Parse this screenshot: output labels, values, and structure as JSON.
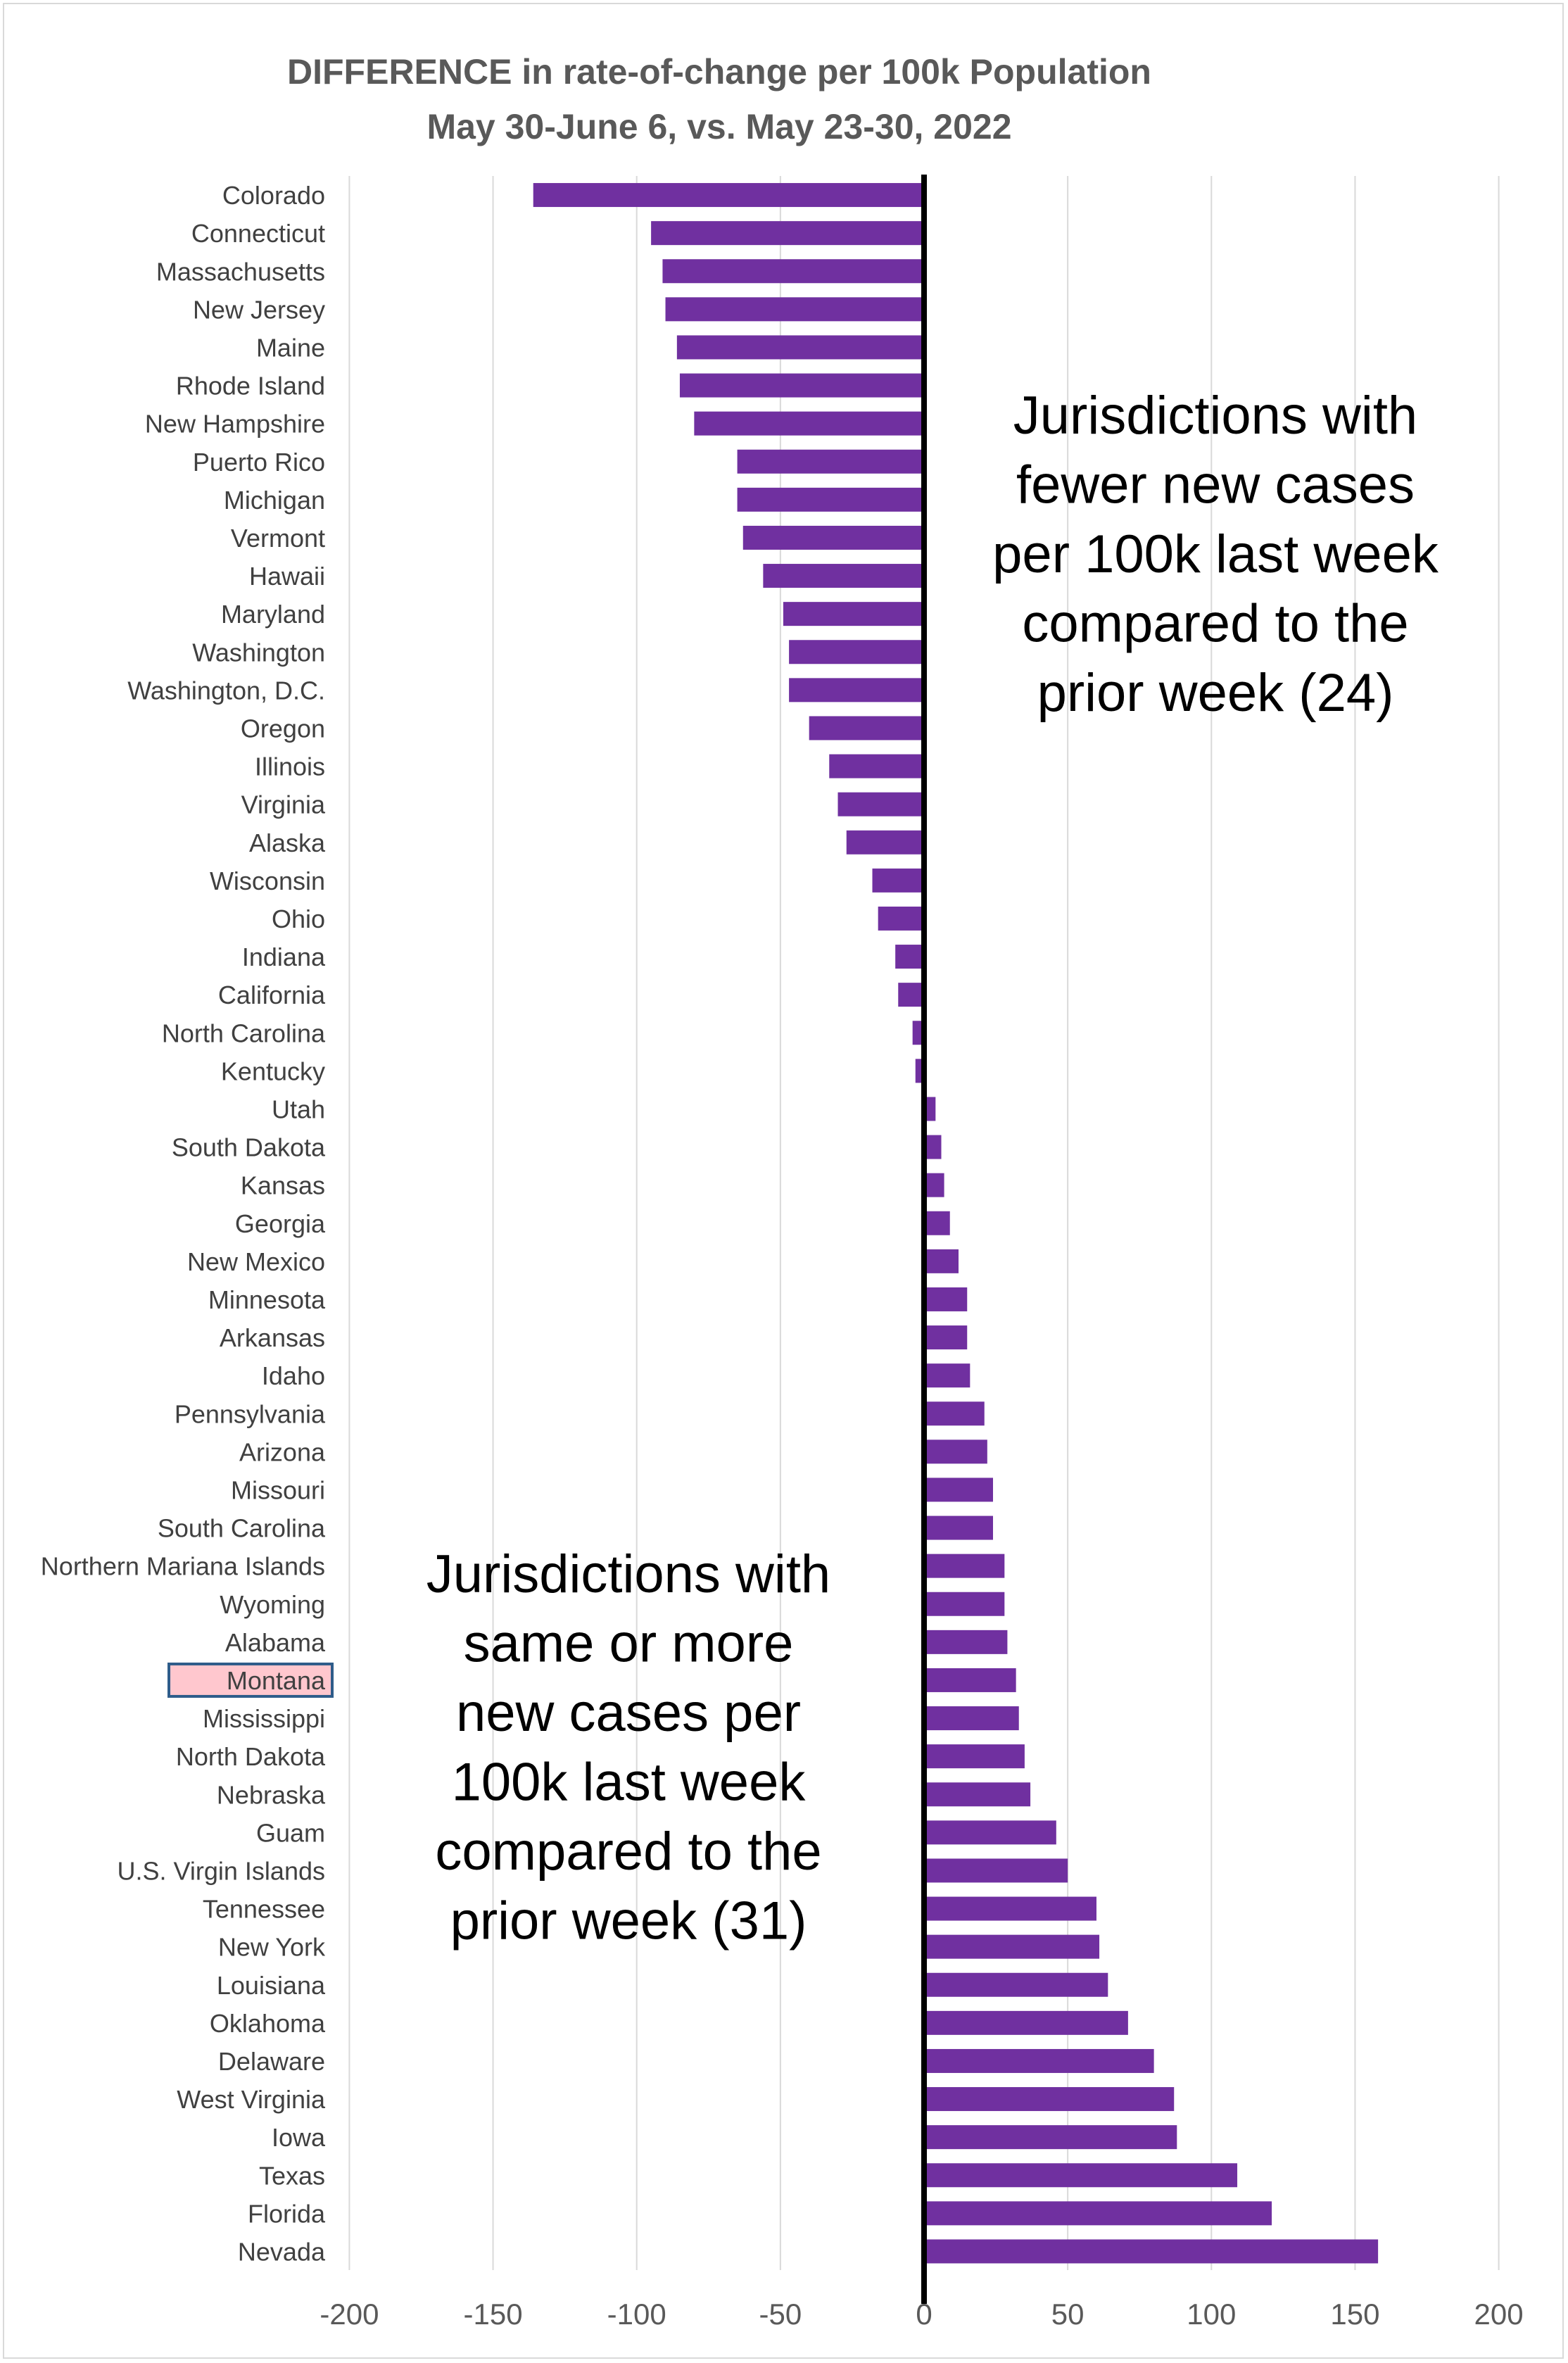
{
  "chart_data": {
    "type": "bar",
    "orientation": "horizontal",
    "title": "DIFFERENCE in rate-of-change per 100k Population",
    "subtitle": "May 30-June 6, vs. May 23-30, 2022",
    "xlabel": "",
    "ylabel": "",
    "xlim": [
      -200,
      200
    ],
    "xticks": [
      -200,
      -150,
      -100,
      -50,
      0,
      50,
      100,
      150,
      200
    ],
    "grid": true,
    "legend": "none",
    "bar_color": "#7030a0",
    "highlight": {
      "category": "Montana",
      "fill": "#ffc7ce",
      "border": "#2e5c8a"
    },
    "categories": [
      "Colorado",
      "Connecticut",
      "Massachusetts",
      "New Jersey",
      "Maine",
      "Rhode Island",
      "New Hampshire",
      "Puerto Rico",
      "Michigan",
      "Vermont",
      "Hawaii",
      "Maryland",
      "Washington",
      "Washington, D.C.",
      "Oregon",
      "Illinois",
      "Virginia",
      "Alaska",
      "Wisconsin",
      "Ohio",
      "Indiana",
      "California",
      "North Carolina",
      "Kentucky",
      "Utah",
      "South Dakota",
      "Kansas",
      "Georgia",
      "New Mexico",
      "Minnesota",
      "Arkansas",
      "Idaho",
      "Pennsylvania",
      "Arizona",
      "Missouri",
      "South Carolina",
      "Northern Mariana Islands",
      "Wyoming",
      "Alabama",
      "Montana",
      "Mississippi",
      "North Dakota",
      "Nebraska",
      "Guam",
      "U.S. Virgin Islands",
      "Tennessee",
      "New York",
      "Louisiana",
      "Oklahoma",
      "Delaware",
      "West Virginia",
      "Iowa",
      "Texas",
      "Florida",
      "Nevada"
    ],
    "values": [
      -136,
      -95,
      -91,
      -90,
      -86,
      -85,
      -80,
      -65,
      -65,
      -63,
      -56,
      -49,
      -47,
      -47,
      -40,
      -33,
      -30,
      -27,
      -18,
      -16,
      -10,
      -9,
      -4,
      -3,
      4,
      6,
      7,
      9,
      12,
      15,
      15,
      16,
      21,
      22,
      24,
      24,
      28,
      28,
      29,
      32,
      33,
      35,
      37,
      46,
      50,
      60,
      61,
      64,
      71,
      80,
      87,
      88,
      109,
      121,
      158
    ],
    "annotations": [
      {
        "text": "Jurisdictions with fewer new cases per 100k last week compared to the prior week (24)",
        "lines": [
          "Jurisdictions with",
          "fewer new cases",
          "per 100k last week",
          "compared to the",
          "prior week (24)"
        ]
      },
      {
        "text": "Jurisdictions with same or more new cases per 100k last week compared to the prior week (31)",
        "lines": [
          "Jurisdictions with",
          "same or more",
          "new cases per",
          "100k last week",
          "compared to the",
          "prior week (31)"
        ]
      }
    ]
  }
}
